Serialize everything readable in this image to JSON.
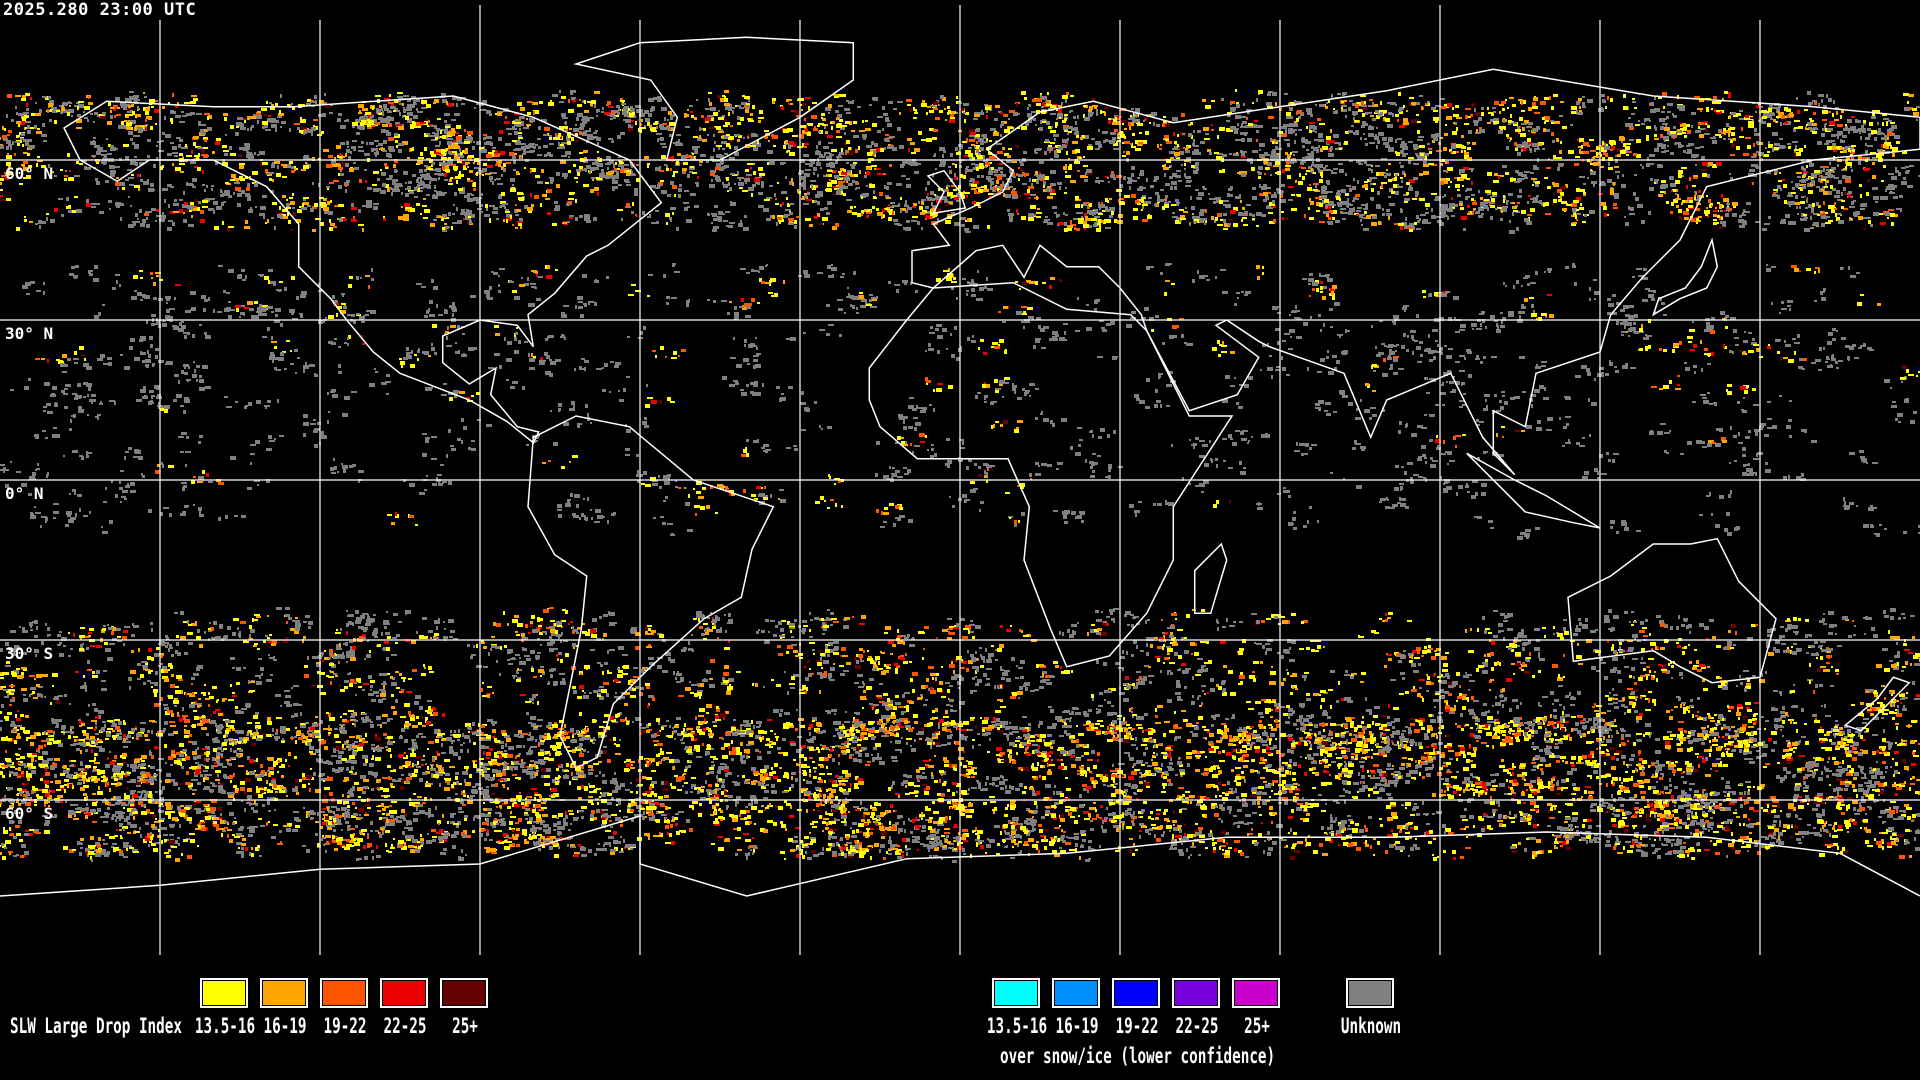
{
  "timestamp": "2025.280 23:00 UTC",
  "map": {
    "projection": "equirectangular",
    "lat_labels": [
      "60° N",
      "30° N",
      "0° N",
      "30° S",
      "60° S"
    ],
    "gridline_color": "#ffffff",
    "coastline_color": "#ffffff",
    "background_color": "#000000"
  },
  "legend": {
    "title": "SLW Large Drop Index",
    "standard": [
      {
        "label": "13.5-16",
        "color": "#ffff00"
      },
      {
        "label": "16-19",
        "color": "#ffa500"
      },
      {
        "label": "19-22",
        "color": "#ff5500"
      },
      {
        "label": "22-25",
        "color": "#ee0000"
      },
      {
        "label": "25+",
        "color": "#660000"
      }
    ],
    "snow_ice": [
      {
        "label": "13.5-16",
        "color": "#00ffff"
      },
      {
        "label": "16-19",
        "color": "#0090ff"
      },
      {
        "label": "19-22",
        "color": "#0000ff"
      },
      {
        "label": "22-25",
        "color": "#7700dd"
      },
      {
        "label": "25+",
        "color": "#cc00cc"
      }
    ],
    "snow_ice_note": "over snow/ice (lower confidence)",
    "unknown": {
      "label": "Unknown",
      "color": "#808080"
    }
  }
}
